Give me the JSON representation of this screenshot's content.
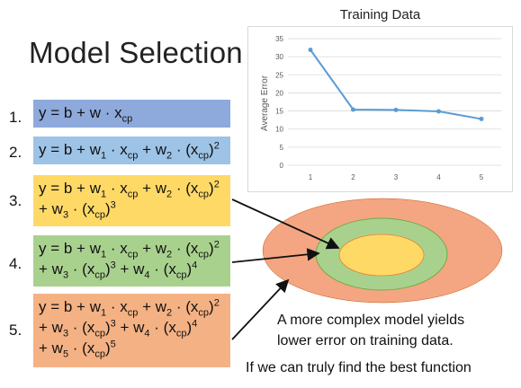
{
  "slide": {
    "title": "Model Selection",
    "caption_line1": "A more complex model yields",
    "caption_line2": "lower error on training data.",
    "caption_line3": "If we can truly find the best function"
  },
  "models": [
    {
      "num": "1.",
      "color": "#8ea9db"
    },
    {
      "num": "2.",
      "color": "#9dc3e6"
    },
    {
      "num": "3.",
      "color": "#ffd966"
    },
    {
      "num": "4.",
      "color": "#a9d18e"
    },
    {
      "num": "5.",
      "color": "#f4b183"
    }
  ],
  "formulas": {
    "f1": {
      "a": "y = b + w · x",
      "b": "cp"
    },
    "f2": {
      "a": "y = b + w",
      "b": "1",
      "c": " · x",
      "d": "cp",
      "e": " + w",
      "f": "2",
      "g": " · (x",
      "h": "cp",
      "i": ")",
      "j": "2"
    },
    "f3": {
      "l1": {
        "a": "y = b + w",
        "b": "1",
        "c": " · x",
        "d": "cp",
        "e": " + w",
        "f": "2",
        "g": " · (x",
        "h": "cp",
        "i": ")",
        "j": "2"
      },
      "l2": {
        "a": "+ w",
        "b": "3",
        "c": " · (x",
        "d": "cp",
        "e": ")",
        "f": "3"
      }
    },
    "f4": {
      "l1": {
        "a": "y = b + w",
        "b": "1",
        "c": " · x",
        "d": "cp",
        "e": " + w",
        "f": "2",
        "g": " · (x",
        "h": "cp",
        "i": ")",
        "j": "2"
      },
      "l2": {
        "a": "+ w",
        "b": "3",
        "c": " · (x",
        "d": "cp",
        "e": ")",
        "f": "3",
        "g": " + w",
        "h": "4",
        "i": " · (x",
        "j": "cp",
        "k": ")",
        "l": "4"
      }
    },
    "f5": {
      "l1": {
        "a": "y = b + w",
        "b": "1",
        "c": " · x",
        "d": "cp",
        "e": " + w",
        "f": "2",
        "g": " · (x",
        "h": "cp",
        "i": ")",
        "j": "2"
      },
      "l2": {
        "a": "+ w",
        "b": "3",
        "c": " · (x",
        "d": "cp",
        "e": ")",
        "f": "3",
        "g": " + w",
        "h": "4",
        "i": " · (x",
        "j": "cp",
        "k": ")",
        "l": "4"
      },
      "l3": {
        "a": "+ w",
        "b": "5",
        "c": " · (x",
        "d": "cp",
        "e": ")",
        "f": "5"
      }
    }
  },
  "ellipse_colors": {
    "outer": "#f4a582",
    "middle": "#a9d18e",
    "inner": "#ffd966"
  },
  "chart_data": {
    "type": "line",
    "title": "Training Data",
    "xlabel": "",
    "ylabel": "Average Error",
    "x": [
      1,
      2,
      3,
      4,
      5
    ],
    "values": [
      31.9,
      15.4,
      15.3,
      14.9,
      12.8
    ],
    "ylim": [
      0,
      35
    ],
    "yticks": [
      0,
      5,
      10,
      15,
      20,
      25,
      30,
      35
    ],
    "grid": true,
    "color": "#5b9bd5"
  }
}
